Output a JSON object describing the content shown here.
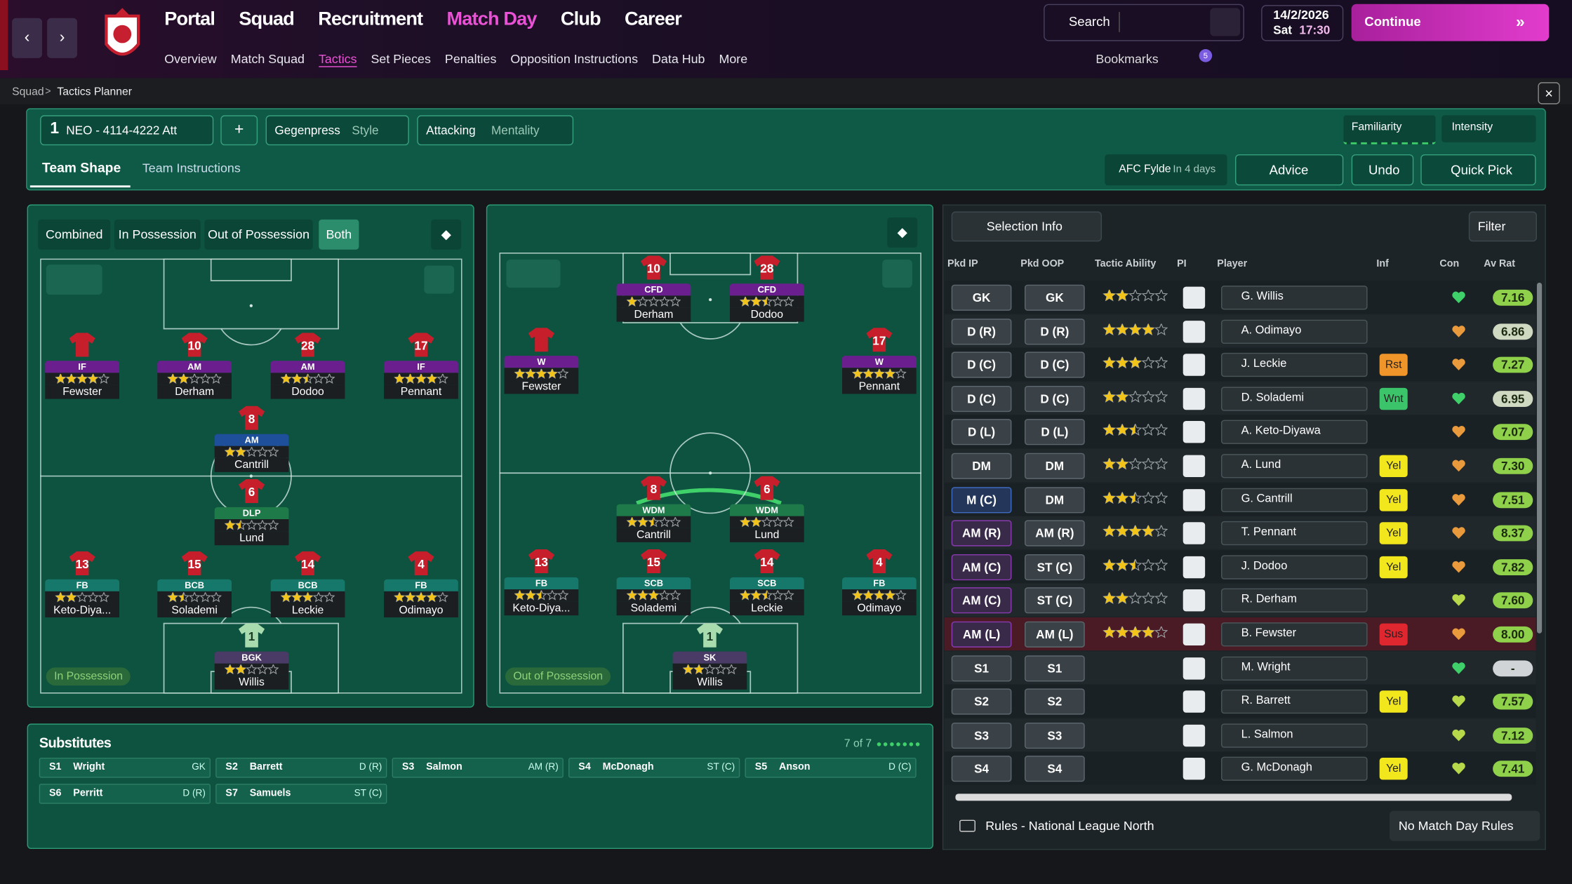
{
  "nav": {
    "menus": [
      "Portal",
      "Squad",
      "Recruitment",
      "Match Day",
      "Club",
      "Career"
    ],
    "links": [
      "Overview",
      "Match Squad",
      "Tactics",
      "Set Pieces",
      "Penalties",
      "Opposition Instructions",
      "Data Hub",
      "More"
    ],
    "search": "Search",
    "date": "14/2/2026",
    "day": "Sat",
    "time": "17:30",
    "continue": "Continue",
    "bookmarks": "Bookmarks",
    "badge": 5
  },
  "breadcrumb": [
    "Squad",
    "Tactics Planner"
  ],
  "tactic": {
    "slot": 1,
    "name": "NEO - 4114-4222 Att",
    "style": "Gegenpress",
    "style_label": "Style",
    "mentality": "Attacking",
    "mentality_label": "Mentality",
    "familiarity": "Familiarity",
    "intensity": "Intensity"
  },
  "tabs": [
    "Team Shape",
    "Team Instructions"
  ],
  "fixture": {
    "opponent": "AFC Fylde",
    "when": "In 4 days"
  },
  "actions": [
    "Advice",
    "Undo",
    "Quick Pick"
  ],
  "views": [
    "Combined",
    "In Possession",
    "Out of Possession",
    "Both"
  ],
  "pitches": [
    {
      "label": "In Possession",
      "players": [
        {
          "number": null,
          "role": "IF",
          "stars": 4,
          "name": "Fewster",
          "color": "#6b1f8e",
          "shirt": "#c61f2b"
        },
        {
          "number": 10,
          "role": "AM",
          "stars": 2,
          "name": "Derham",
          "color": "#6b1f8e",
          "shirt": "#c61f2b"
        },
        {
          "number": 28,
          "role": "AM",
          "stars": 2.5,
          "name": "Dodoo",
          "color": "#6b1f8e",
          "shirt": "#c61f2b"
        },
        {
          "number": 17,
          "role": "IF",
          "stars": 4,
          "name": "Pennant",
          "color": "#6b1f8e",
          "shirt": "#c61f2b"
        },
        {
          "number": 8,
          "role": "AM",
          "stars": 2,
          "name": "Cantrill",
          "color": "#1d4f9a",
          "shirt": "#c61f2b"
        },
        {
          "number": 6,
          "role": "DLP",
          "stars": 1.5,
          "name": "Lund",
          "color": "#1f7a4a",
          "shirt": "#c61f2b"
        },
        {
          "number": 13,
          "role": "FB",
          "stars": 2,
          "name": "Keto-Diya...",
          "color": "#16786a",
          "shirt": "#c61f2b"
        },
        {
          "number": 15,
          "role": "BCB",
          "stars": 1.5,
          "name": "Solademi",
          "color": "#16786a",
          "shirt": "#c61f2b"
        },
        {
          "number": 14,
          "role": "BCB",
          "stars": 3,
          "name": "Leckie",
          "color": "#16786a",
          "shirt": "#c61f2b"
        },
        {
          "number": 4,
          "role": "FB",
          "stars": 4,
          "name": "Odimayo",
          "color": "#16786a",
          "shirt": "#c61f2b"
        },
        {
          "number": 1,
          "role": "BGK",
          "stars": 2,
          "name": "Willis",
          "color": "#4a3a66",
          "shirt": "#a8dcae"
        }
      ]
    },
    {
      "label": "Out of Possession",
      "players": [
        {
          "number": 10,
          "role": "CFD",
          "stars": 1,
          "name": "Derham",
          "color": "#6b1f8e",
          "shirt": "#c61f2b"
        },
        {
          "number": 28,
          "role": "CFD",
          "stars": 2.5,
          "name": "Dodoo",
          "color": "#6b1f8e",
          "shirt": "#c61f2b"
        },
        {
          "number": null,
          "role": "W",
          "stars": 4,
          "name": "Fewster",
          "color": "#6b1f8e",
          "shirt": "#c61f2b"
        },
        {
          "number": 17,
          "role": "W",
          "stars": 4,
          "name": "Pennant",
          "color": "#6b1f8e",
          "shirt": "#c61f2b"
        },
        {
          "number": 8,
          "role": "WDM",
          "stars": 2.5,
          "name": "Cantrill",
          "color": "#1f7a4a",
          "shirt": "#c61f2b"
        },
        {
          "number": 6,
          "role": "WDM",
          "stars": 2,
          "name": "Lund",
          "color": "#1f7a4a",
          "shirt": "#c61f2b"
        },
        {
          "number": 13,
          "role": "FB",
          "stars": 2.5,
          "name": "Keto-Diya...",
          "color": "#16786a",
          "shirt": "#c61f2b"
        },
        {
          "number": 15,
          "role": "SCB",
          "stars": 3,
          "name": "Solademi",
          "color": "#16786a",
          "shirt": "#c61f2b"
        },
        {
          "number": 14,
          "role": "SCB",
          "stars": 2.5,
          "name": "Leckie",
          "color": "#16786a",
          "shirt": "#c61f2b"
        },
        {
          "number": 4,
          "role": "FB",
          "stars": 4,
          "name": "Odimayo",
          "color": "#16786a",
          "shirt": "#c61f2b"
        },
        {
          "number": 1,
          "role": "SK",
          "stars": 2,
          "name": "Willis",
          "color": "#4a3a66",
          "shirt": "#a8dcae"
        }
      ]
    }
  ],
  "substitutes": {
    "title": "Substitutes",
    "count": "7 of 7",
    "players": [
      {
        "slot": "S1",
        "name": "Wright",
        "position": "GK"
      },
      {
        "slot": "S2",
        "name": "Barrett",
        "position": "D (R)"
      },
      {
        "slot": "S3",
        "name": "Salmon",
        "position": "AM (R)"
      },
      {
        "slot": "S4",
        "name": "McDonagh",
        "position": "ST (C)"
      },
      {
        "slot": "S5",
        "name": "Anson",
        "position": "D (C)"
      },
      {
        "slot": "S6",
        "name": "Perritt",
        "position": "D (R)"
      },
      {
        "slot": "S7",
        "name": "Samuels",
        "position": "ST (C)"
      }
    ]
  },
  "selection": {
    "view": "Selection Info",
    "filter": "Filter",
    "columns": [
      "Pkd IP",
      "Pkd OOP",
      "Tactic Ability",
      "PI",
      "Player",
      "Inf",
      "Con",
      "Av Rat"
    ],
    "rows": [
      {
        "ip": "GK",
        "oop": "GK",
        "ability": 2,
        "player": "G. Willis",
        "inf": null,
        "inf_color": null,
        "con": "#3fd06a",
        "rating": "7.16",
        "rating_color": "#8fd14a"
      },
      {
        "ip": "D (R)",
        "oop": "D (R)",
        "ability": 4,
        "player": "A. Odimayo",
        "inf": null,
        "inf_color": null,
        "con": "#e89a3c",
        "rating": "6.86",
        "rating_color": "#cfd8c0"
      },
      {
        "ip": "D (C)",
        "oop": "D (C)",
        "ability": 3,
        "player": "J. Leckie",
        "inf": "Rst",
        "inf_color": "#f0952a",
        "con": "#e89a3c",
        "rating": "7.27",
        "rating_color": "#8fd14a"
      },
      {
        "ip": "D (C)",
        "oop": "D (C)",
        "ability": 2,
        "player": "D. Solademi",
        "inf": "Wnt",
        "inf_color": "#3cc46a",
        "con": "#3fd06a",
        "rating": "6.95",
        "rating_color": "#cfd8c0"
      },
      {
        "ip": "D (L)",
        "oop": "D (L)",
        "ability": 2.5,
        "player": "A. Keto-Diyawa",
        "inf": null,
        "inf_color": null,
        "con": "#e89a3c",
        "rating": "7.07",
        "rating_color": "#8fd14a"
      },
      {
        "ip": "DM",
        "oop": "DM",
        "ability": 2,
        "player": "A. Lund",
        "inf": "Yel",
        "inf_color": "#f2e61c",
        "con": "#e89a3c",
        "rating": "7.30",
        "rating_color": "#8fd14a"
      },
      {
        "ip": "M (C)",
        "oop": "DM",
        "ability": 2.5,
        "player": "G. Cantrill",
        "inf": "Yel",
        "inf_color": "#f2e61c",
        "con": "#e89a3c",
        "rating": "7.51",
        "rating_color": "#8fd14a"
      },
      {
        "ip": "AM (R)",
        "oop": "AM (R)",
        "ability": 4,
        "player": "T. Pennant",
        "inf": "Yel",
        "inf_color": "#f2e61c",
        "con": "#e89a3c",
        "rating": "8.37",
        "rating_color": "#8fd14a"
      },
      {
        "ip": "AM (C)",
        "oop": "ST (C)",
        "ability": 2.5,
        "player": "J. Dodoo",
        "inf": "Yel",
        "inf_color": "#f2e61c",
        "con": "#e89a3c",
        "rating": "7.82",
        "rating_color": "#8fd14a"
      },
      {
        "ip": "AM (C)",
        "oop": "ST (C)",
        "ability": 2,
        "player": "R. Derham",
        "inf": null,
        "inf_color": null,
        "con": "#b6d84a",
        "rating": "7.60",
        "rating_color": "#8fd14a"
      },
      {
        "ip": "AM (L)",
        "oop": "AM (L)",
        "ability": 4,
        "player": "B. Fewster",
        "inf": "Sus",
        "inf_color": "#e0262e",
        "con": "#e89a3c",
        "rating": "8.00",
        "rating_color": "#8fd14a"
      },
      {
        "ip": "S1",
        "oop": "S1",
        "ability": null,
        "player": "M. Wright",
        "inf": null,
        "inf_color": null,
        "con": "#3fd06a",
        "rating": "-",
        "rating_color": "#d0d4d6"
      },
      {
        "ip": "S2",
        "oop": "S2",
        "ability": null,
        "player": "R. Barrett",
        "inf": "Yel",
        "inf_color": "#f2e61c",
        "con": "#b6d84a",
        "rating": "7.57",
        "rating_color": "#8fd14a"
      },
      {
        "ip": "S3",
        "oop": "S3",
        "ability": null,
        "player": "L. Salmon",
        "inf": null,
        "inf_color": null,
        "con": "#b6d84a",
        "rating": "7.12",
        "rating_color": "#8fd14a"
      },
      {
        "ip": "S4",
        "oop": "S4",
        "ability": null,
        "player": "G. McDonagh",
        "inf": "Yel",
        "inf_color": "#f2e61c",
        "con": "#b6d84a",
        "rating": "7.41",
        "rating_color": "#8fd14a"
      }
    ],
    "rules": "Rules - National League North",
    "match_day_rules": "No Match Day Rules"
  }
}
